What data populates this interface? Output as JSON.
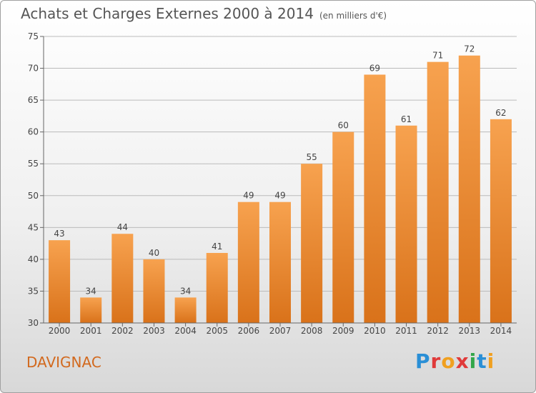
{
  "header": {
    "title": "Achats et Charges Externes 2000 à 2014",
    "unit": "(en milliers d'€)"
  },
  "footer": {
    "commune": "DAVIGNAC",
    "logo_text": "Proxiti"
  },
  "colors": {
    "bar_light": "#f7a24f",
    "bar_dark": "#d9721a",
    "grid": "#bbbbbb",
    "commune_text": "#d2691e",
    "logo_letters": [
      "#2a8fd6",
      "#e03a3a",
      "#f0a020",
      "#e03a3a",
      "#33a64a",
      "#2a8fd6",
      "#f0a020"
    ]
  },
  "chart_data": {
    "type": "bar",
    "categories": [
      "2000",
      "2001",
      "2002",
      "2003",
      "2004",
      "2005",
      "2006",
      "2007",
      "2008",
      "2009",
      "2010",
      "2011",
      "2012",
      "2013",
      "2014"
    ],
    "values": [
      43,
      34,
      44,
      40,
      34,
      41,
      49,
      49,
      55,
      60,
      69,
      61,
      71,
      72,
      62
    ],
    "ylim": [
      30,
      75
    ],
    "yticks": [
      30,
      35,
      40,
      45,
      50,
      55,
      60,
      65,
      70,
      75
    ],
    "grid": true
  }
}
